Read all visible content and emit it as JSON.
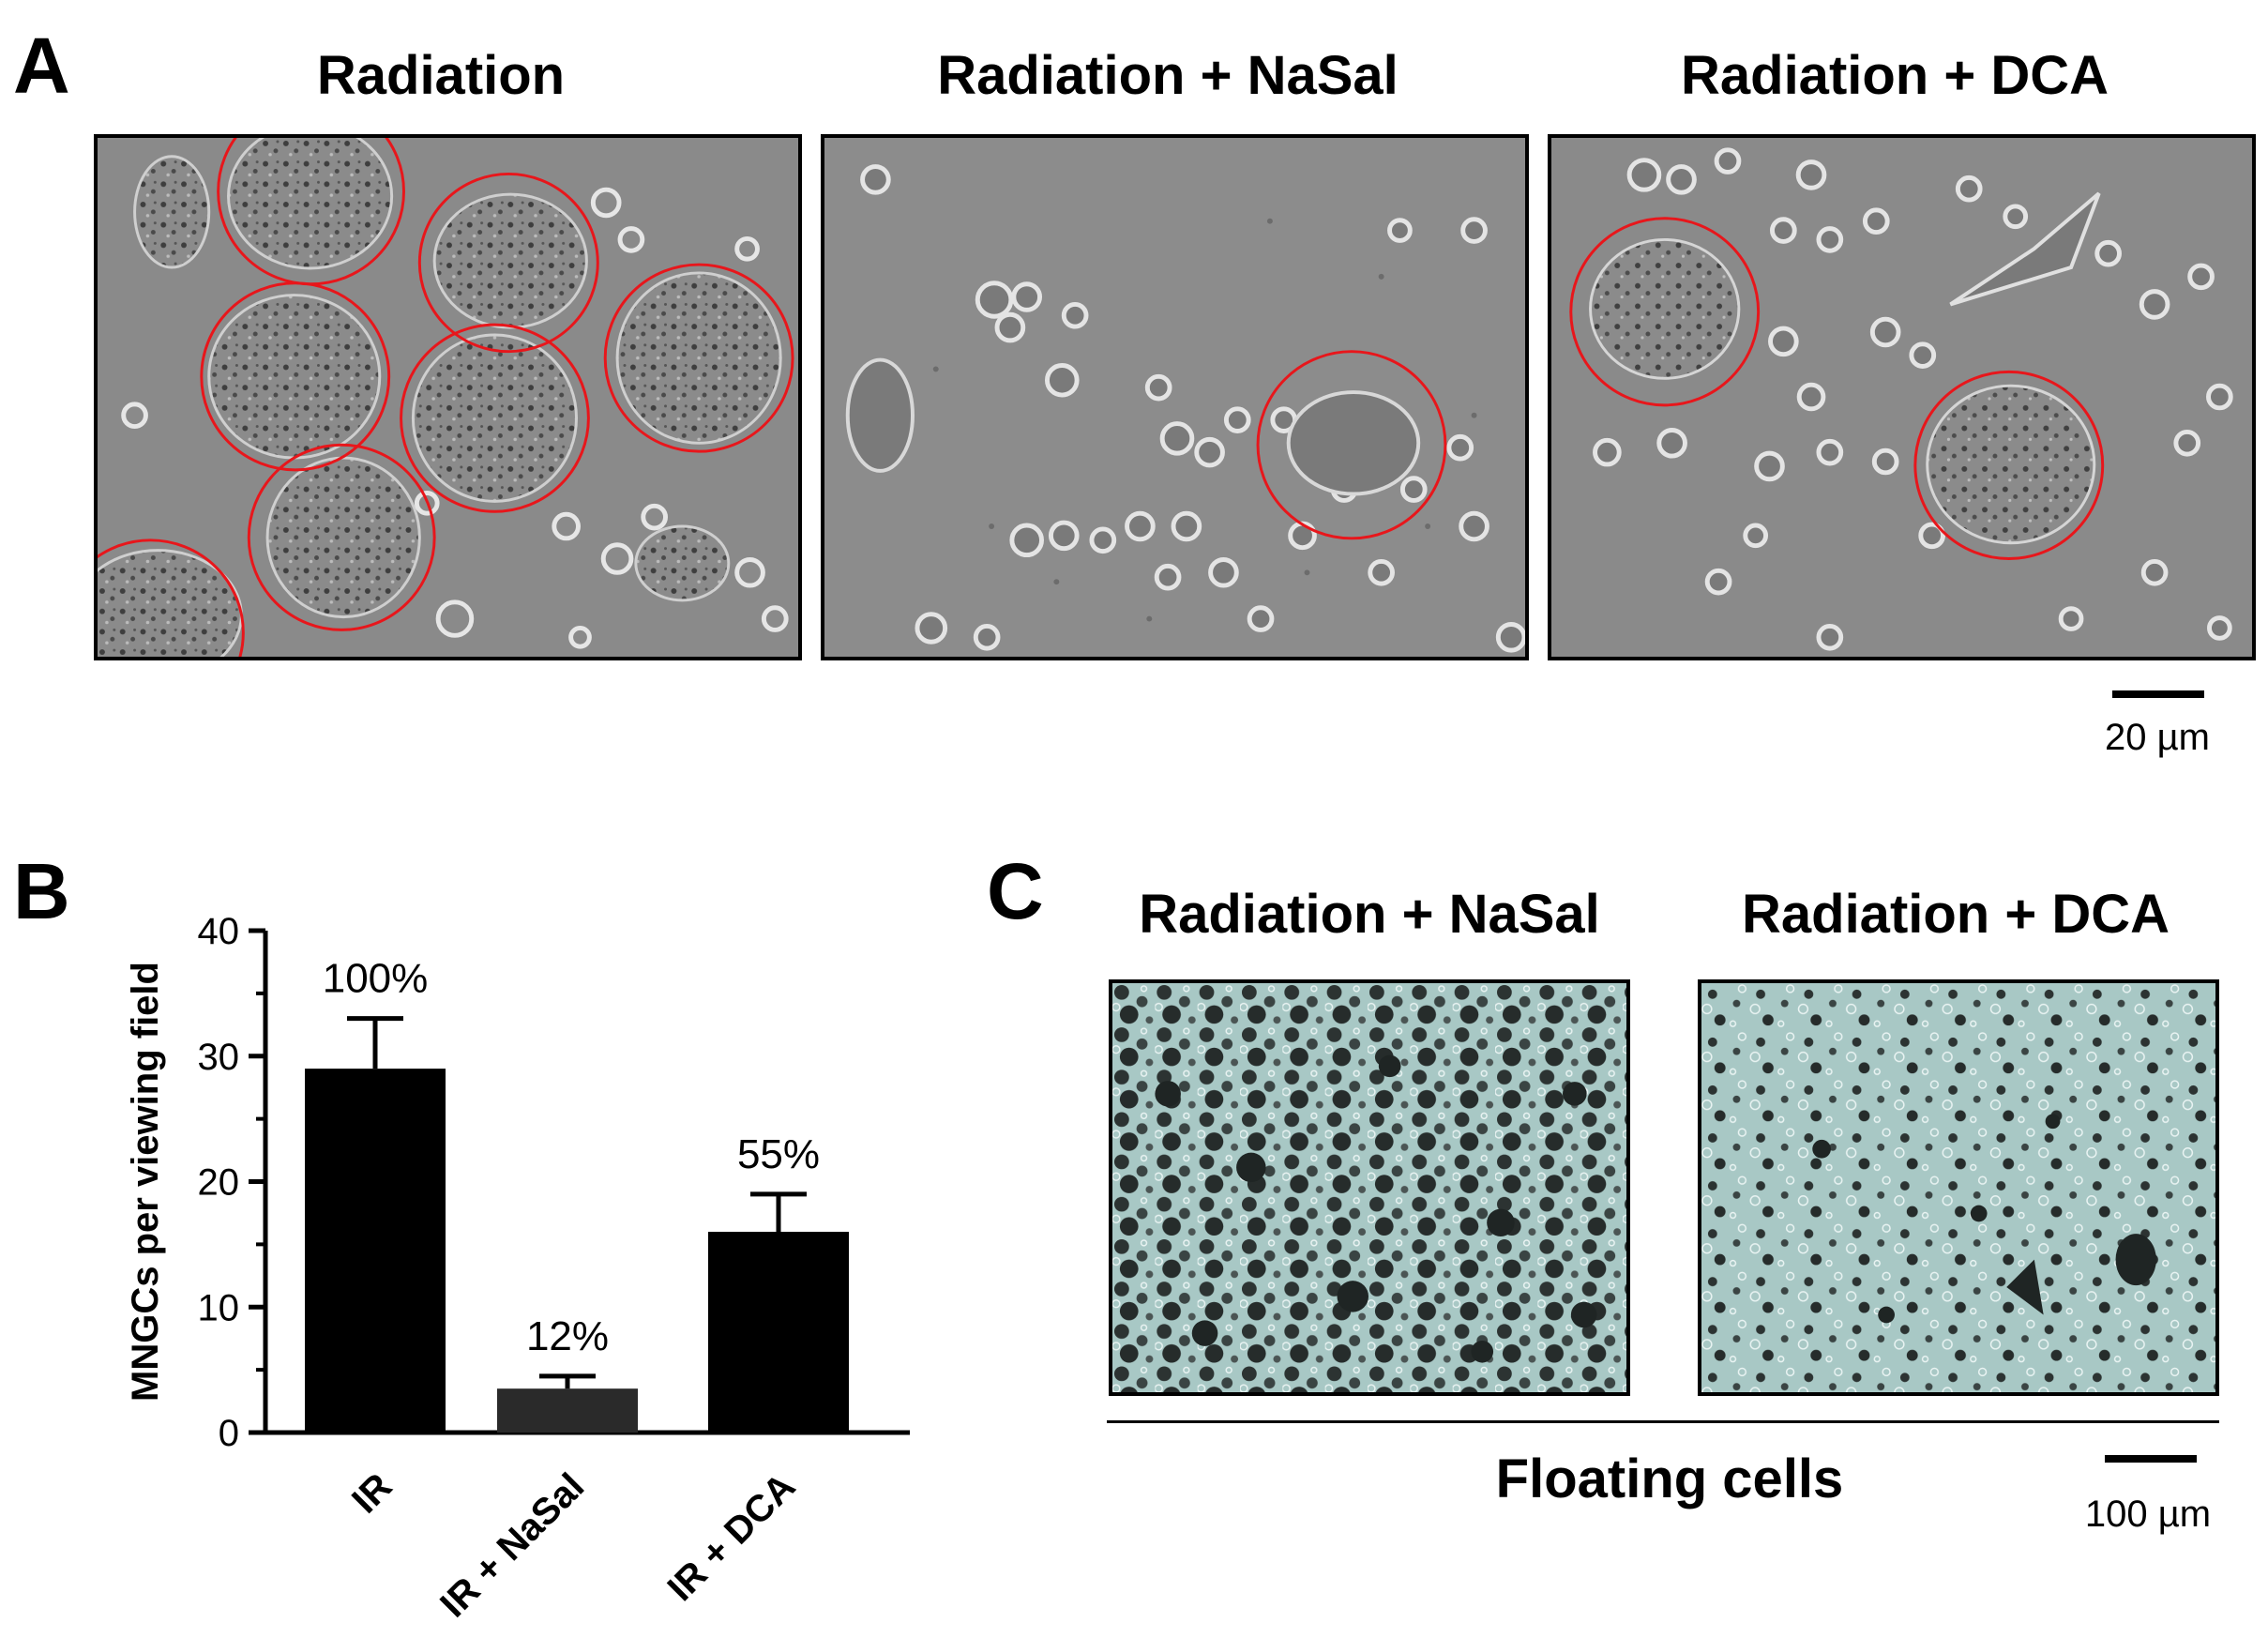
{
  "panelA": {
    "letter": "A",
    "titles": [
      "Radiation",
      "Radiation + NaSal",
      "Radiation + DCA"
    ],
    "scale_label": "20 µm"
  },
  "panelB": {
    "letter": "B"
  },
  "panelC": {
    "letter": "C",
    "titles": [
      "Radiation + NaSal",
      "Radiation + DCA"
    ],
    "group_label": "Floating cells",
    "scale_label": "100 µm"
  },
  "colors": {
    "circle": "#e8161b",
    "phase_bg": "#8a8a8a",
    "stain_bg": "#a9c9c6",
    "bar": "#000000",
    "bar_dark": "#2a2a2a"
  },
  "chart_data": {
    "type": "bar",
    "ylabel": "MNGCs per viewing field",
    "xlabel": "",
    "ylim": [
      0,
      40
    ],
    "yticks": [
      0,
      10,
      20,
      30,
      40
    ],
    "categories": [
      "IR",
      "IR + NaSal",
      "IR + DCA"
    ],
    "values": [
      29,
      3.5,
      16
    ],
    "errors": [
      4,
      1,
      3
    ],
    "annotations": [
      "100%",
      "12%",
      "55%"
    ],
    "grid": false
  }
}
